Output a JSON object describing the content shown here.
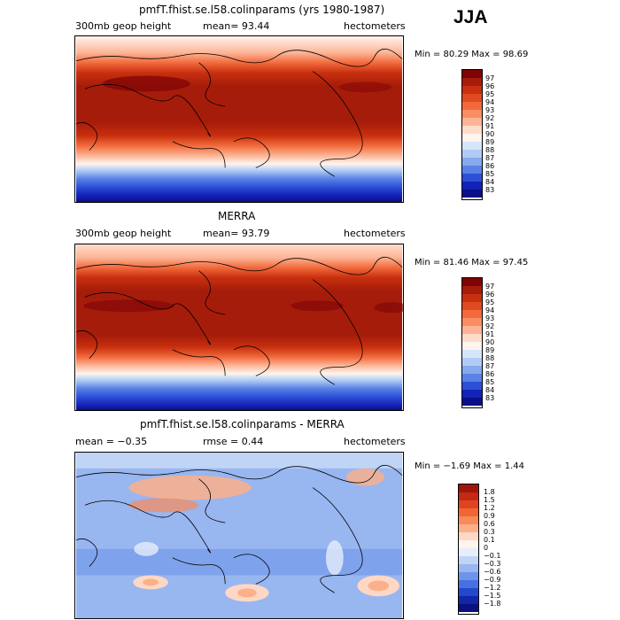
{
  "season": "JJA",
  "panels": [
    {
      "id": "model",
      "title": "pmfT.fhist.se.l58.colinparams (yrs 1980-1987)",
      "left_text": "300mb geop height",
      "mean_text": "mean=   93.44",
      "units": "hectometers",
      "minmax": "Min =  80.29 Max =  98.69",
      "colorbar_labels": [
        "97",
        "96",
        "95",
        "94",
        "93",
        "92",
        "91",
        "90",
        "89",
        "88",
        "87",
        "86",
        "85",
        "84",
        "83"
      ],
      "colorbar_colors": [
        "#7d0306",
        "#a61c0a",
        "#c8300f",
        "#e04a1e",
        "#f26a3c",
        "#f98d63",
        "#fcb495",
        "#fedccb",
        "#fff4ee",
        "#d6e6fa",
        "#b0ccf4",
        "#86aaee",
        "#5a82e6",
        "#2c50d6",
        "#1422b8",
        "#0a0e88"
      ]
    },
    {
      "id": "merra",
      "title": "MERRA",
      "left_text": "300mb geop height",
      "mean_text": "mean=   93.79",
      "units": "hectometers",
      "minmax": "Min =  81.46 Max =  97.45",
      "colorbar_labels": [
        "97",
        "96",
        "95",
        "94",
        "93",
        "92",
        "91",
        "90",
        "89",
        "88",
        "87",
        "86",
        "85",
        "84",
        "83"
      ],
      "colorbar_colors": [
        "#7d0306",
        "#a61c0a",
        "#c8300f",
        "#e04a1e",
        "#f26a3c",
        "#f98d63",
        "#fcb495",
        "#fedccb",
        "#fff4ee",
        "#d6e6fa",
        "#b0ccf4",
        "#86aaee",
        "#5a82e6",
        "#2c50d6",
        "#1422b8",
        "#0a0e88"
      ]
    },
    {
      "id": "diff",
      "title": "pmfT.fhist.se.l58.colinparams - MERRA",
      "left_text": "mean =   −0.35",
      "mean_text": "rmse =    0.44",
      "units": "hectometers",
      "minmax": "Min =  −1.69 Max =    1.44",
      "colorbar_labels": [
        "1.8",
        "1.5",
        "1.2",
        "0.9",
        "0.6",
        "0.3",
        "0.1",
        "0",
        "−0.1",
        "−0.3",
        "−0.6",
        "−0.9",
        "−1.2",
        "−1.5",
        "−1.8"
      ],
      "colorbar_colors": [
        "#a0140c",
        "#c42a12",
        "#e0441e",
        "#f26636",
        "#f98a5a",
        "#fcb08a",
        "#fed8c4",
        "#fff4ee",
        "#e6eefb",
        "#c0d4f6",
        "#98b6f0",
        "#6e94ea",
        "#4870e2",
        "#2448cc",
        "#1226a8",
        "#0a1080"
      ]
    }
  ]
}
